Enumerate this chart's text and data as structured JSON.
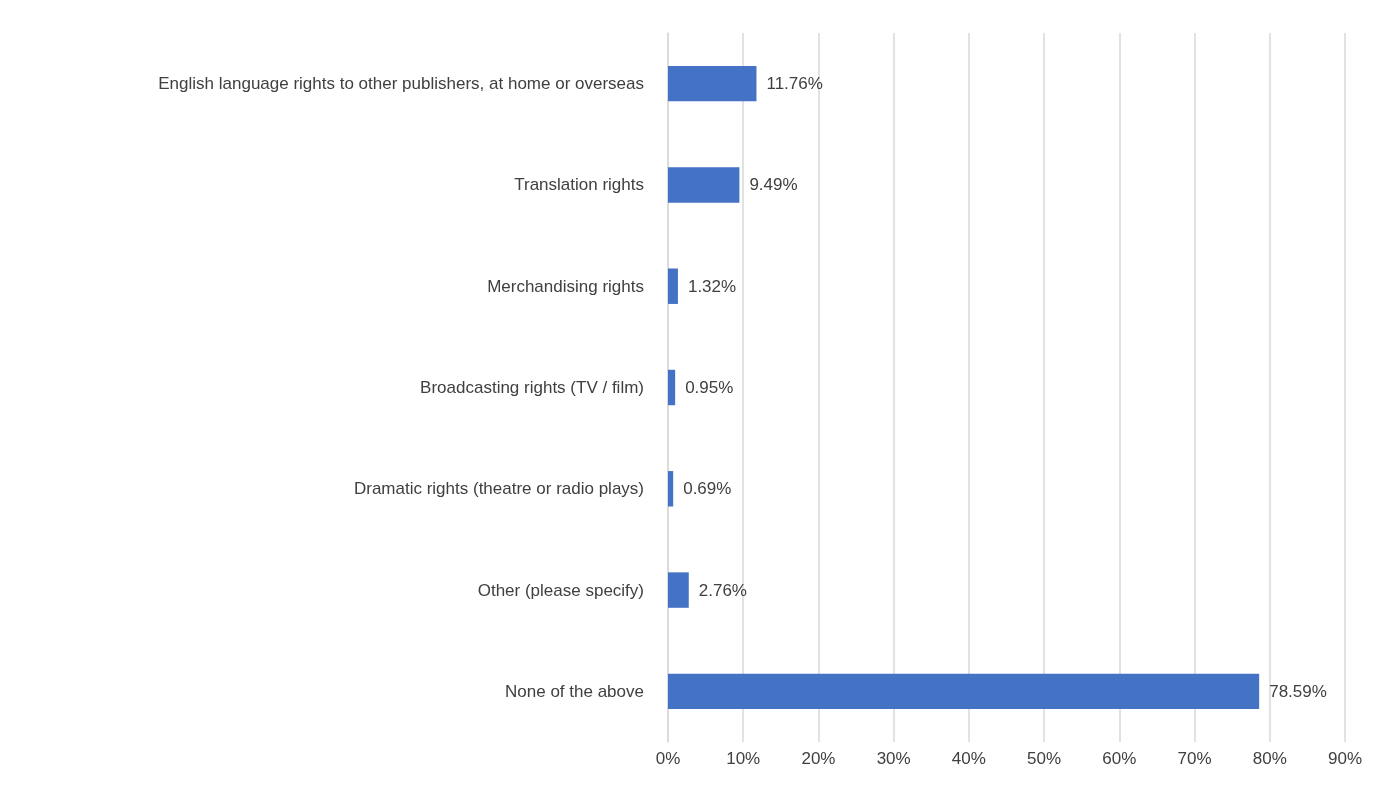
{
  "chart_data": {
    "type": "bar",
    "orientation": "horizontal",
    "categories": [
      "English language rights to other publishers, at home or overseas",
      "Translation rights",
      "Merchandising rights",
      "Broadcasting rights (TV / film)",
      "Dramatic rights (theatre or radio plays)",
      "Other (please specify)",
      "None of the above"
    ],
    "values": [
      11.76,
      9.49,
      1.32,
      0.95,
      0.69,
      2.76,
      78.59
    ],
    "value_labels": [
      "11.76%",
      "9.49%",
      "1.32%",
      "0.95%",
      "0.69%",
      "2.76%",
      "78.59%"
    ],
    "color": "#4472c4",
    "xlim": [
      0,
      90
    ],
    "xticks": [
      {
        "value": 0,
        "label": "0%"
      },
      {
        "value": 10,
        "label": "10%"
      },
      {
        "value": 20,
        "label": "20%"
      },
      {
        "value": 30,
        "label": "30%"
      },
      {
        "value": 40,
        "label": "40%"
      },
      {
        "value": 50,
        "label": "50%"
      },
      {
        "value": 60,
        "label": "60%"
      },
      {
        "value": 70,
        "label": "70%"
      },
      {
        "value": 80,
        "label": "80%"
      },
      {
        "value": 90,
        "label": "90%"
      }
    ],
    "grid": "x"
  }
}
